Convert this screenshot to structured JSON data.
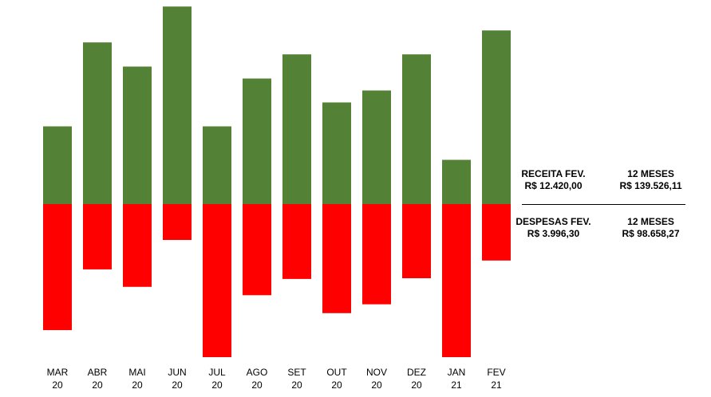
{
  "colors": {
    "revenue": "#538135",
    "expense": "#ff0000"
  },
  "summary": {
    "revenue": {
      "label": "RECEITA FEV.",
      "value": "R$ 12.420,00",
      "period_label": "12 MESES",
      "period_value": "R$ 139.526,11"
    },
    "expense": {
      "label": "DESPESAS FEV.",
      "value": "R$ 3.996,30",
      "period_label": "12 MESES",
      "period_value": "R$ 98.658,27"
    }
  },
  "chart_data": {
    "type": "bar",
    "stacked": "diverging",
    "categories": [
      [
        "MAR",
        "20"
      ],
      [
        "ABR",
        "20"
      ],
      [
        "MAI",
        "20"
      ],
      [
        "JUN",
        "20"
      ],
      [
        "JUL",
        "20"
      ],
      [
        "AGO",
        "20"
      ],
      [
        "SET",
        "20"
      ],
      [
        "OUT",
        "20"
      ],
      [
        "NOV",
        "20"
      ],
      [
        "DEZ",
        "20"
      ],
      [
        "JAN",
        "21"
      ],
      [
        "FEV",
        "21"
      ]
    ],
    "series": [
      {
        "color": "revenue",
        "values": [
          32.5,
          67.6,
          57.5,
          82.6,
          32.5,
          52.5,
          62.6,
          42.5,
          47.5,
          62.6,
          18.5,
          72.6
        ]
      },
      {
        "color": "expense",
        "values": [
          -52.7,
          -27.3,
          -34.6,
          -15.0,
          -64.0,
          -38.1,
          -31.3,
          -45.6,
          -41.9,
          -31.0,
          -64.0,
          -23.6
        ]
      }
    ],
    "ylim": [
      -64,
      83
    ],
    "grid": false,
    "legend": "none"
  }
}
